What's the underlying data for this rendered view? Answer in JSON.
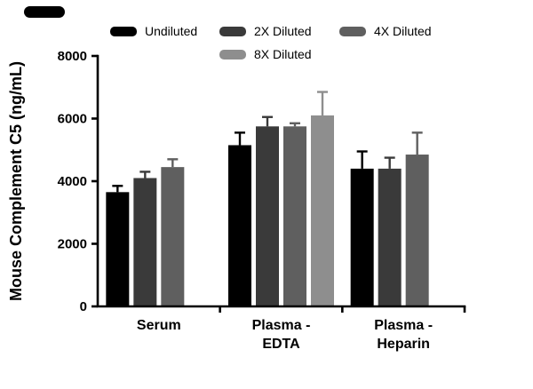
{
  "figure": {
    "background": "#ffffff",
    "axis_color": "#000000"
  },
  "chart_data": {
    "type": "bar",
    "title": "",
    "xlabel": "",
    "ylabel": "Mouse Complement C5 (ng/mL)",
    "ylim": [
      0,
      8000
    ],
    "yticks": [
      0,
      2000,
      4000,
      6000,
      8000
    ],
    "ytick_labels": [
      "0",
      "2000",
      "4000",
      "6000",
      "8000"
    ],
    "grid": false,
    "legend_position": "top",
    "categories": [
      "Serum",
      "Plasma -\nEDTA",
      "Plasma -\nHeparin"
    ],
    "series": [
      {
        "name": "Undiluted",
        "color": "#000000",
        "values": [
          3650,
          5150,
          4400
        ],
        "errors": [
          200,
          400,
          550
        ]
      },
      {
        "name": "2X Diluted",
        "color": "#3a3a3a",
        "values": [
          4100,
          5750,
          4400
        ],
        "errors": [
          200,
          300,
          350
        ]
      },
      {
        "name": "4X Diluted",
        "color": "#5f5f5f",
        "values": [
          4450,
          5750,
          4850
        ],
        "errors": [
          250,
          100,
          700
        ]
      },
      {
        "name": "8X Diluted",
        "color": "#8e8e8e",
        "values": [
          null,
          6100,
          null
        ],
        "errors": [
          null,
          750,
          null
        ]
      }
    ]
  }
}
